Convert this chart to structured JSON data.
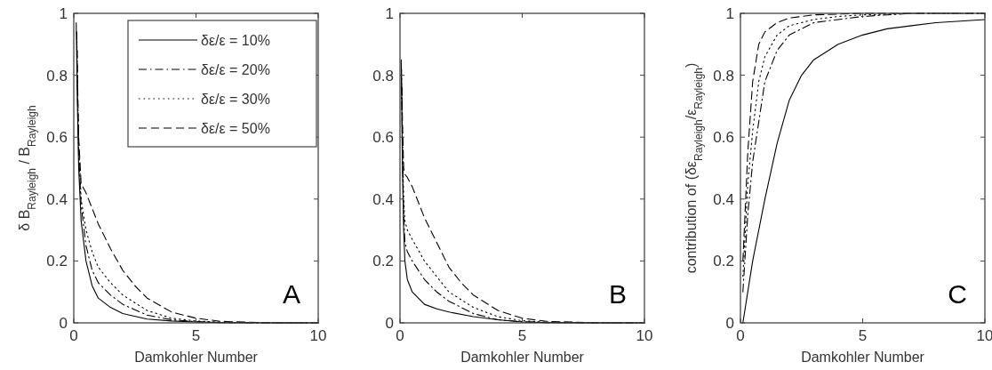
{
  "chart_data": [
    {
      "type": "line",
      "xlabel": "Damkohler Number",
      "ylabel": "δ B$_{Rayleigh}$ / B$_{Rayleigh}$",
      "annotations": [
        "A"
      ],
      "xlim": [
        0,
        10
      ],
      "ylim": [
        0,
        1
      ],
      "xticks": [
        0,
        5,
        10
      ],
      "yticks": [
        0,
        0.2,
        0.4,
        0.6,
        0.8,
        1
      ],
      "grid": false,
      "legend": "top right",
      "series": [
        {
          "name": "δε/ε = 10%",
          "color": "#000000",
          "line_style": "solid",
          "x": [
            0.1,
            0.15,
            0.2,
            0.3,
            0.5,
            0.75,
            1,
            1.5,
            2,
            3,
            4,
            5,
            6,
            8,
            10
          ],
          "values": [
            0.97,
            0.7,
            0.5,
            0.33,
            0.2,
            0.12,
            0.08,
            0.05,
            0.03,
            0.012,
            0.006,
            0.003,
            0.001,
            0,
            0
          ]
        },
        {
          "name": "δε/ε = 20%",
          "color": "#000000",
          "line_style": "dashdot",
          "x": [
            0.12,
            0.15,
            0.2,
            0.3,
            0.5,
            0.75,
            1,
            1.5,
            2,
            3,
            4,
            5,
            6,
            8,
            10
          ],
          "values": [
            0.94,
            0.75,
            0.55,
            0.38,
            0.25,
            0.17,
            0.13,
            0.09,
            0.06,
            0.025,
            0.01,
            0.004,
            0.001,
            0,
            0
          ]
        },
        {
          "name": "δε/ε = 30%",
          "color": "#000000",
          "line_style": "dotted",
          "x": [
            0.13,
            0.15,
            0.2,
            0.3,
            0.5,
            0.75,
            1,
            1.5,
            2,
            3,
            4,
            5,
            6,
            8,
            10
          ],
          "values": [
            0.91,
            0.78,
            0.58,
            0.4,
            0.3,
            0.23,
            0.18,
            0.13,
            0.09,
            0.04,
            0.015,
            0.006,
            0.002,
            0,
            0
          ]
        },
        {
          "name": "δε/ε = 50%",
          "color": "#000000",
          "line_style": "dashed",
          "x": [
            0.14,
            0.15,
            0.2,
            0.3,
            0.5,
            0.75,
            1,
            1.5,
            2,
            2.5,
            3,
            4,
            5,
            6,
            8,
            10
          ],
          "values": [
            0.88,
            0.8,
            0.6,
            0.45,
            0.42,
            0.37,
            0.32,
            0.24,
            0.17,
            0.12,
            0.08,
            0.035,
            0.015,
            0.005,
            0,
            0
          ]
        }
      ]
    },
    {
      "type": "line",
      "xlabel": "Damkohler Number",
      "annotations": [
        "B"
      ],
      "xlim": [
        0,
        10
      ],
      "ylim": [
        0,
        1
      ],
      "xticks": [
        0,
        5,
        10
      ],
      "yticks": [
        0,
        0.2,
        0.4,
        0.6,
        0.8,
        1
      ],
      "grid": false,
      "series": [
        {
          "color": "#000000",
          "line_style": "solid",
          "x": [
            0.05,
            0.1,
            0.15,
            0.2,
            0.3,
            0.5,
            1,
            1.5,
            2,
            3,
            4,
            5,
            6,
            8,
            10
          ],
          "values": [
            0.85,
            0.5,
            0.3,
            0.2,
            0.14,
            0.1,
            0.06,
            0.045,
            0.035,
            0.02,
            0.01,
            0.003,
            0.001,
            0,
            0
          ]
        },
        {
          "color": "#000000",
          "line_style": "dashdot",
          "x": [
            0.06,
            0.1,
            0.15,
            0.2,
            0.3,
            0.5,
            1,
            1.5,
            2,
            3,
            4,
            5,
            6,
            8,
            10
          ],
          "values": [
            0.82,
            0.55,
            0.35,
            0.26,
            0.23,
            0.2,
            0.14,
            0.1,
            0.07,
            0.03,
            0.01,
            0.004,
            0.001,
            0,
            0
          ]
        },
        {
          "color": "#000000",
          "line_style": "dotted",
          "x": [
            0.07,
            0.1,
            0.15,
            0.2,
            0.3,
            0.5,
            1,
            1.5,
            2,
            3,
            4,
            5,
            6,
            8,
            10
          ],
          "values": [
            0.79,
            0.6,
            0.4,
            0.33,
            0.3,
            0.27,
            0.2,
            0.15,
            0.1,
            0.05,
            0.02,
            0.007,
            0.002,
            0,
            0
          ]
        },
        {
          "color": "#000000",
          "line_style": "dashed",
          "x": [
            0.08,
            0.1,
            0.15,
            0.2,
            0.3,
            0.5,
            1,
            1.5,
            2,
            2.5,
            3,
            4,
            5,
            6,
            8,
            10
          ],
          "values": [
            0.76,
            0.65,
            0.5,
            0.48,
            0.47,
            0.44,
            0.34,
            0.26,
            0.18,
            0.13,
            0.09,
            0.04,
            0.015,
            0.005,
            0,
            0
          ]
        }
      ]
    },
    {
      "type": "line",
      "xlabel": "Damkohler Number",
      "ylabel": "contribution of (δε$_{Rayleigh}$/ε$_{Rayleigh}$)",
      "annotations": [
        "C"
      ],
      "xlim": [
        0,
        10
      ],
      "ylim": [
        0,
        1
      ],
      "xticks": [
        0,
        5,
        10
      ],
      "yticks": [
        0,
        0.2,
        0.4,
        0.6,
        0.8,
        1
      ],
      "grid": false,
      "series": [
        {
          "color": "#000000",
          "line_style": "solid",
          "x": [
            0.1,
            0.3,
            0.5,
            0.75,
            1,
            1.5,
            2,
            2.5,
            3,
            4,
            5,
            6,
            7,
            8,
            10
          ],
          "values": [
            0,
            0.1,
            0.2,
            0.3,
            0.4,
            0.58,
            0.72,
            0.8,
            0.85,
            0.9,
            0.93,
            0.95,
            0.96,
            0.97,
            0.98
          ]
        },
        {
          "color": "#000000",
          "line_style": "dashdot",
          "x": [
            0.1,
            0.3,
            0.5,
            0.75,
            1,
            1.5,
            2,
            3,
            4,
            5,
            7,
            10
          ],
          "values": [
            0.1,
            0.35,
            0.52,
            0.65,
            0.78,
            0.88,
            0.93,
            0.97,
            0.98,
            0.99,
            1,
            1
          ]
        },
        {
          "color": "#000000",
          "line_style": "dotted",
          "x": [
            0.1,
            0.3,
            0.5,
            0.75,
            1,
            1.5,
            2,
            3,
            4,
            5,
            7,
            10
          ],
          "values": [
            0.15,
            0.45,
            0.62,
            0.78,
            0.86,
            0.93,
            0.96,
            0.98,
            0.99,
            0.995,
            1,
            1
          ]
        },
        {
          "color": "#000000",
          "line_style": "dashed",
          "x": [
            0.1,
            0.3,
            0.5,
            0.75,
            1,
            1.5,
            2,
            3,
            5,
            7,
            10
          ],
          "values": [
            0.2,
            0.55,
            0.78,
            0.9,
            0.94,
            0.97,
            0.985,
            0.995,
            1,
            1,
            1
          ]
        }
      ]
    }
  ]
}
